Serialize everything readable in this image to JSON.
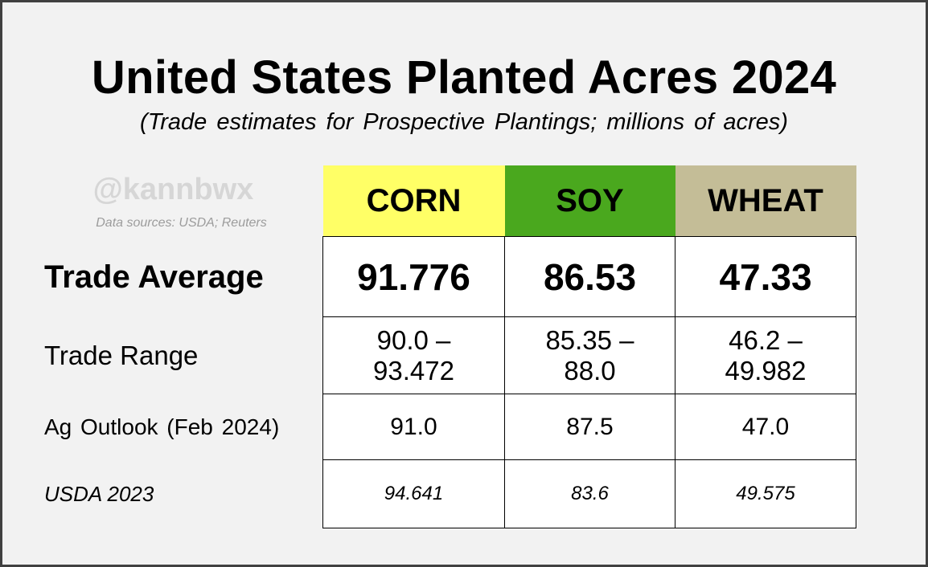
{
  "title": "United States Planted Acres 2024",
  "subtitle": "(Trade estimates for Prospective Plantings; millions of acres)",
  "watermark": {
    "handle": "@kannbwx",
    "sources": "Data sources: USDA; Reuters"
  },
  "chart_data": {
    "type": "table",
    "title": "United States Planted Acres 2024",
    "subtitle": "(Trade estimates for Prospective Plantings; millions of acres)",
    "columns": [
      {
        "name": "CORN",
        "color": "#ffff66"
      },
      {
        "name": "SOY",
        "color": "#4aa81e"
      },
      {
        "name": "WHEAT",
        "color": "#c4bd97"
      }
    ],
    "rows": [
      {
        "label": "Trade Average",
        "values": [
          "91.776",
          "86.53",
          "47.33"
        ]
      },
      {
        "label": "Trade Range",
        "values": [
          {
            "low": "90.0 –",
            "high": "93.472"
          },
          {
            "low": "85.35 –",
            "high": "88.0"
          },
          {
            "low": "46.2 –",
            "high": "49.982"
          }
        ]
      },
      {
        "label": "Ag Outlook (Feb 2024)",
        "values": [
          "91.0",
          "87.5",
          "47.0"
        ]
      },
      {
        "label": "USDA 2023",
        "values": [
          "94.641",
          "83.6",
          "49.575"
        ]
      }
    ]
  }
}
